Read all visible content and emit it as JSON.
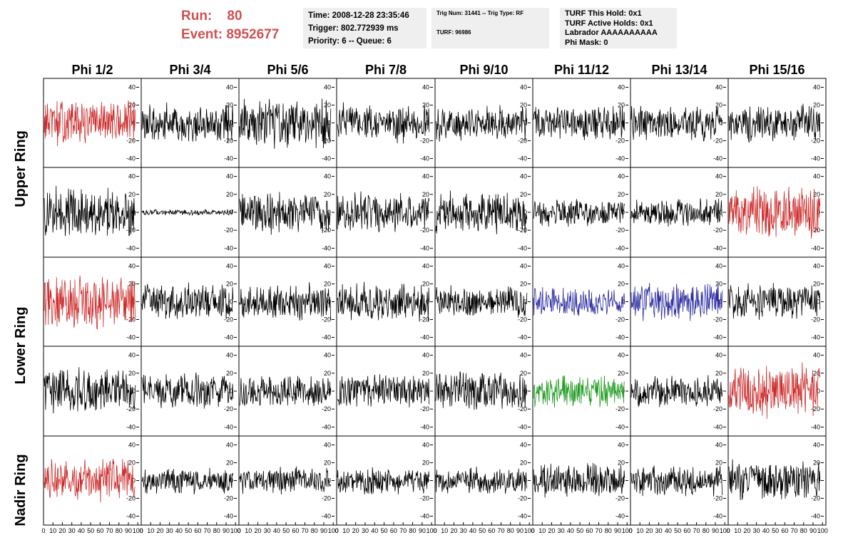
{
  "header": {
    "run_label": "Run:    80",
    "event_label": "Event: 8952677",
    "time_line": "Time: 2008-12-28 23:35:46",
    "trigger_line": "Trigger: 802.772939 ms",
    "priority_line": "Priority: 6 -- Queue: 6",
    "trig_num_line": "Trig Num: 31441 -- Trig Type: RF",
    "turf_line": "TURF: 96986",
    "turf_hold_line": "TURF This Hold: 0x1",
    "turf_active_line": "TURF Active Holds: 0x1",
    "labrador_line": "Labrador AAAAAAAAAA",
    "phi_mask_line": "Phi Mask: 0"
  },
  "columns": [
    "Phi 1/2",
    "Phi 3/4",
    "Phi 5/6",
    "Phi 7/8",
    "Phi 9/10",
    "Phi 11/12",
    "Phi 13/14",
    "Phi 15/16"
  ],
  "ring_labels": [
    "Upper Ring",
    "Lower Ring",
    "Nadir Ring"
  ],
  "y_ticks": [
    "40",
    "20",
    "0",
    "-20",
    "-40"
  ],
  "x_ticks": [
    "0",
    "10",
    "20",
    "30",
    "40",
    "50",
    "60",
    "70",
    "80",
    "90",
    "100"
  ],
  "colors": {
    "red": "#cc2a2a",
    "blue": "#2a2aa0",
    "green": "#1e9a1e",
    "black": "#000000",
    "header_red": "#d05050"
  },
  "chart_data": {
    "type": "line",
    "rows": 5,
    "cols": 8,
    "xlim": [
      0,
      100
    ],
    "ylim": [
      -50,
      50
    ],
    "traces": [
      {
        "row": 0,
        "col": 0,
        "color": "red",
        "amplitude": 24
      },
      {
        "row": 0,
        "col": 1,
        "color": "black",
        "amplitude": 20
      },
      {
        "row": 0,
        "col": 2,
        "color": "black",
        "amplitude": 26
      },
      {
        "row": 0,
        "col": 3,
        "color": "black",
        "amplitude": 20
      },
      {
        "row": 0,
        "col": 4,
        "color": "black",
        "amplitude": 18
      },
      {
        "row": 0,
        "col": 5,
        "color": "black",
        "amplitude": 18
      },
      {
        "row": 0,
        "col": 6,
        "color": "black",
        "amplitude": 18
      },
      {
        "row": 0,
        "col": 7,
        "color": "black",
        "amplitude": 20
      },
      {
        "row": 1,
        "col": 0,
        "color": "black",
        "amplitude": 26
      },
      {
        "row": 1,
        "col": 1,
        "color": "black",
        "amplitude": 3
      },
      {
        "row": 1,
        "col": 2,
        "color": "black",
        "amplitude": 22
      },
      {
        "row": 1,
        "col": 3,
        "color": "black",
        "amplitude": 20
      },
      {
        "row": 1,
        "col": 4,
        "color": "black",
        "amplitude": 22
      },
      {
        "row": 1,
        "col": 5,
        "color": "black",
        "amplitude": 14
      },
      {
        "row": 1,
        "col": 6,
        "color": "black",
        "amplitude": 14
      },
      {
        "row": 1,
        "col": 7,
        "color": "red",
        "amplitude": 28
      },
      {
        "row": 2,
        "col": 0,
        "color": "red",
        "amplitude": 28
      },
      {
        "row": 2,
        "col": 1,
        "color": "black",
        "amplitude": 18
      },
      {
        "row": 2,
        "col": 2,
        "color": "black",
        "amplitude": 20
      },
      {
        "row": 2,
        "col": 3,
        "color": "black",
        "amplitude": 20
      },
      {
        "row": 2,
        "col": 4,
        "color": "black",
        "amplitude": 16
      },
      {
        "row": 2,
        "col": 5,
        "color": "blue",
        "amplitude": 14
      },
      {
        "row": 2,
        "col": 6,
        "color": "blue",
        "amplitude": 20
      },
      {
        "row": 2,
        "col": 7,
        "color": "black",
        "amplitude": 18
      },
      {
        "row": 3,
        "col": 0,
        "color": "black",
        "amplitude": 24
      },
      {
        "row": 3,
        "col": 1,
        "color": "black",
        "amplitude": 18
      },
      {
        "row": 3,
        "col": 2,
        "color": "black",
        "amplitude": 16
      },
      {
        "row": 3,
        "col": 3,
        "color": "black",
        "amplitude": 18
      },
      {
        "row": 3,
        "col": 4,
        "color": "black",
        "amplitude": 20
      },
      {
        "row": 3,
        "col": 5,
        "color": "green",
        "amplitude": 16
      },
      {
        "row": 3,
        "col": 6,
        "color": "black",
        "amplitude": 16
      },
      {
        "row": 3,
        "col": 7,
        "color": "red",
        "amplitude": 28
      },
      {
        "row": 4,
        "col": 0,
        "color": "red",
        "amplitude": 22
      },
      {
        "row": 4,
        "col": 1,
        "color": "black",
        "amplitude": 14
      },
      {
        "row": 4,
        "col": 2,
        "color": "black",
        "amplitude": 14
      },
      {
        "row": 4,
        "col": 3,
        "color": "black",
        "amplitude": 14
      },
      {
        "row": 4,
        "col": 4,
        "color": "black",
        "amplitude": 14
      },
      {
        "row": 4,
        "col": 5,
        "color": "black",
        "amplitude": 18
      },
      {
        "row": 4,
        "col": 6,
        "color": "black",
        "amplitude": 16
      },
      {
        "row": 4,
        "col": 7,
        "color": "black",
        "amplitude": 20
      }
    ]
  }
}
